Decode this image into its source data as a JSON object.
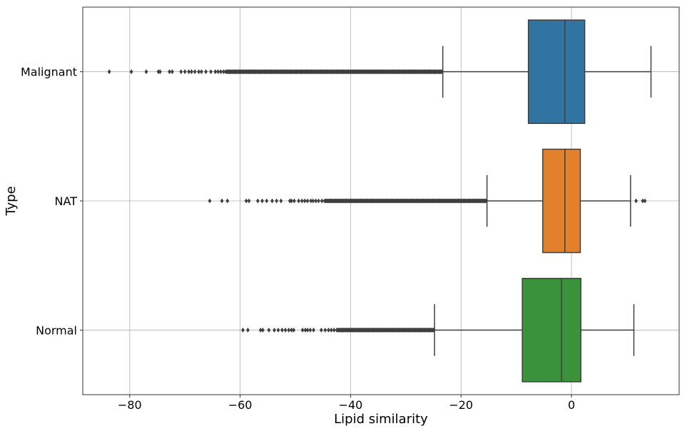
{
  "chart_data": {
    "type": "boxplot",
    "orientation": "horizontal",
    "xlabel": "Lipid similarity",
    "ylabel": "Type",
    "xlim": [
      -88.5,
      19.5
    ],
    "xticks": [
      -80,
      -60,
      -40,
      -20,
      0
    ],
    "xtick_labels": [
      "−80",
      "−60",
      "−40",
      "−20",
      "0"
    ],
    "grid": true,
    "categories": [
      "Malignant",
      "NAT",
      "Normal"
    ],
    "series": [
      {
        "category": "Malignant",
        "color": "#3274a1",
        "whisker_low": -23.3,
        "q1": -7.8,
        "median": -1.2,
        "q3": 2.4,
        "whisker_high": 14.4,
        "outliers_sparse": [
          -83.7,
          -79.7,
          -77.0,
          -74.8,
          -74.5,
          -72.8,
          -72.3,
          -70.7,
          -70.0,
          -69.3,
          -68.8,
          -68.2,
          -67.5,
          -67.0,
          -66.2,
          -65.3,
          -64.5,
          -64.0,
          -63.5,
          -63.0,
          -62.6
        ],
        "outlier_dense_range": [
          -62.4,
          -23.3
        ],
        "outliers_high": []
      },
      {
        "category": "NAT",
        "color": "#e1812c",
        "whisker_low": -15.3,
        "q1": -5.2,
        "median": -1.2,
        "q3": 1.6,
        "whisker_high": 10.7,
        "outliers_sparse": [
          -65.5,
          -63.3,
          -62.3,
          -58.9,
          -58.4,
          -56.8,
          -56.0,
          -55.2,
          -54.2,
          -53.4,
          -52.6,
          -51.0,
          -50.7,
          -50.2,
          -49.4,
          -48.8,
          -48.3,
          -47.8,
          -47.2,
          -46.8,
          -46.3,
          -45.8,
          -45.2,
          -44.7
        ],
        "outlier_dense_range": [
          -44.5,
          -15.3
        ],
        "outliers_high": [
          11.7,
          12.9,
          13.3
        ]
      },
      {
        "category": "Normal",
        "color": "#3a923a",
        "whisker_low": -24.8,
        "q1": -8.9,
        "median": -1.8,
        "q3": 1.7,
        "whisker_high": 11.3,
        "outliers_sparse": [
          -59.5,
          -58.6,
          -56.3,
          -55.9,
          -54.8,
          -53.8,
          -53.1,
          -52.4,
          -51.8,
          -51.2,
          -50.7,
          -50.3,
          -48.7,
          -48.2,
          -47.8,
          -47.3,
          -46.7,
          -45.3,
          -44.6,
          -44.0,
          -43.5,
          -43.0,
          -42.5
        ],
        "outlier_dense_range": [
          -42.3,
          -24.8
        ],
        "outliers_high": []
      }
    ]
  }
}
